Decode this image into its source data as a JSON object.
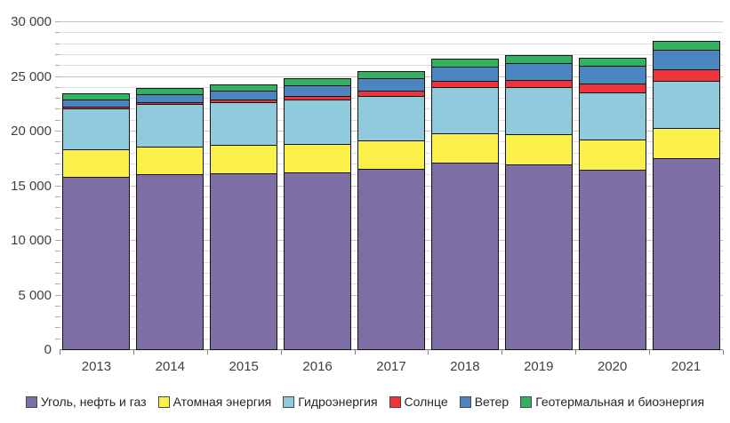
{
  "chart_data": {
    "type": "bar",
    "stacked": true,
    "title": "",
    "xlabel": "",
    "ylabel": "",
    "categories": [
      "2013",
      "2014",
      "2015",
      "2016",
      "2017",
      "2018",
      "2019",
      "2020",
      "2021"
    ],
    "series": [
      {
        "name": "Уголь, нефть и газ",
        "color": "#7d6fa5",
        "values": [
          15800,
          16000,
          16100,
          16200,
          16500,
          17050,
          16900,
          16450,
          17450
        ]
      },
      {
        "name": "Атомная энергия",
        "color": "#fbf04a",
        "values": [
          2480,
          2540,
          2570,
          2610,
          2640,
          2700,
          2800,
          2700,
          2800
        ]
      },
      {
        "name": "Гидроэнергия",
        "color": "#90cbdd",
        "values": [
          3790,
          3890,
          3900,
          4040,
          4070,
          4200,
          4250,
          4360,
          4300
        ]
      },
      {
        "name": "Солнце",
        "color": "#ee333b",
        "values": [
          140,
          200,
          260,
          330,
          450,
          580,
          700,
          840,
          1050
        ]
      },
      {
        "name": "Ветер",
        "color": "#4c86c0",
        "values": [
          650,
          720,
          830,
          990,
          1130,
          1340,
          1500,
          1600,
          1820
        ]
      },
      {
        "name": "Геотермальная и биоэнергия",
        "color": "#33b163",
        "values": [
          500,
          550,
          600,
          620,
          680,
          730,
          750,
          750,
          830
        ]
      }
    ],
    "totals": [
      23360,
      23900,
      24260,
      24790,
      25470,
      26600,
      26900,
      26700,
      28250
    ],
    "ylim": [
      0,
      30000
    ],
    "ytick_minor_step": 1000,
    "ytick_major_step": 5000,
    "ytick_labels": [
      "0",
      "5 000",
      "10 000",
      "15 000",
      "20 000",
      "25 000",
      "30 000"
    ],
    "grid": true,
    "legend_position": "bottom",
    "bar_outline_color": "#141414"
  }
}
